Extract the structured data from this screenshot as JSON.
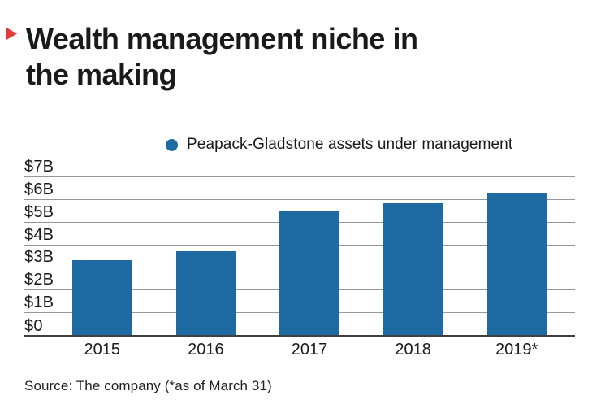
{
  "brand": {
    "corner_mark_color": "#e23b3b"
  },
  "header": {
    "title": "Wealth management niche in\nthe making"
  },
  "legend": {
    "label": "Peapack-Gladstone assets under management",
    "marker_color": "#1e6ba4"
  },
  "chart_data": {
    "type": "bar",
    "title": "Wealth management niche in the making",
    "series_name": "Peapack-Gladstone assets under management",
    "categories": [
      "2015",
      "2016",
      "2017",
      "2018",
      "2019*"
    ],
    "values": [
      3.3,
      3.7,
      5.5,
      5.8,
      6.3
    ],
    "unit": "billions of dollars",
    "xlabel": "",
    "ylabel": "",
    "ylim": [
      0,
      7
    ],
    "y_ticks_top_to_bottom": [
      "$7B",
      "$6B",
      "$5B",
      "$4B",
      "$3B",
      "$2B",
      "$1B",
      "$0"
    ],
    "grid": true,
    "legend_position": "top-center",
    "bar_color": "#1e6ba4",
    "gridline_color": "#969696",
    "baseline_color": "#3f3f3f"
  },
  "footer": {
    "source": "Source: The company (*as of March 31)"
  }
}
